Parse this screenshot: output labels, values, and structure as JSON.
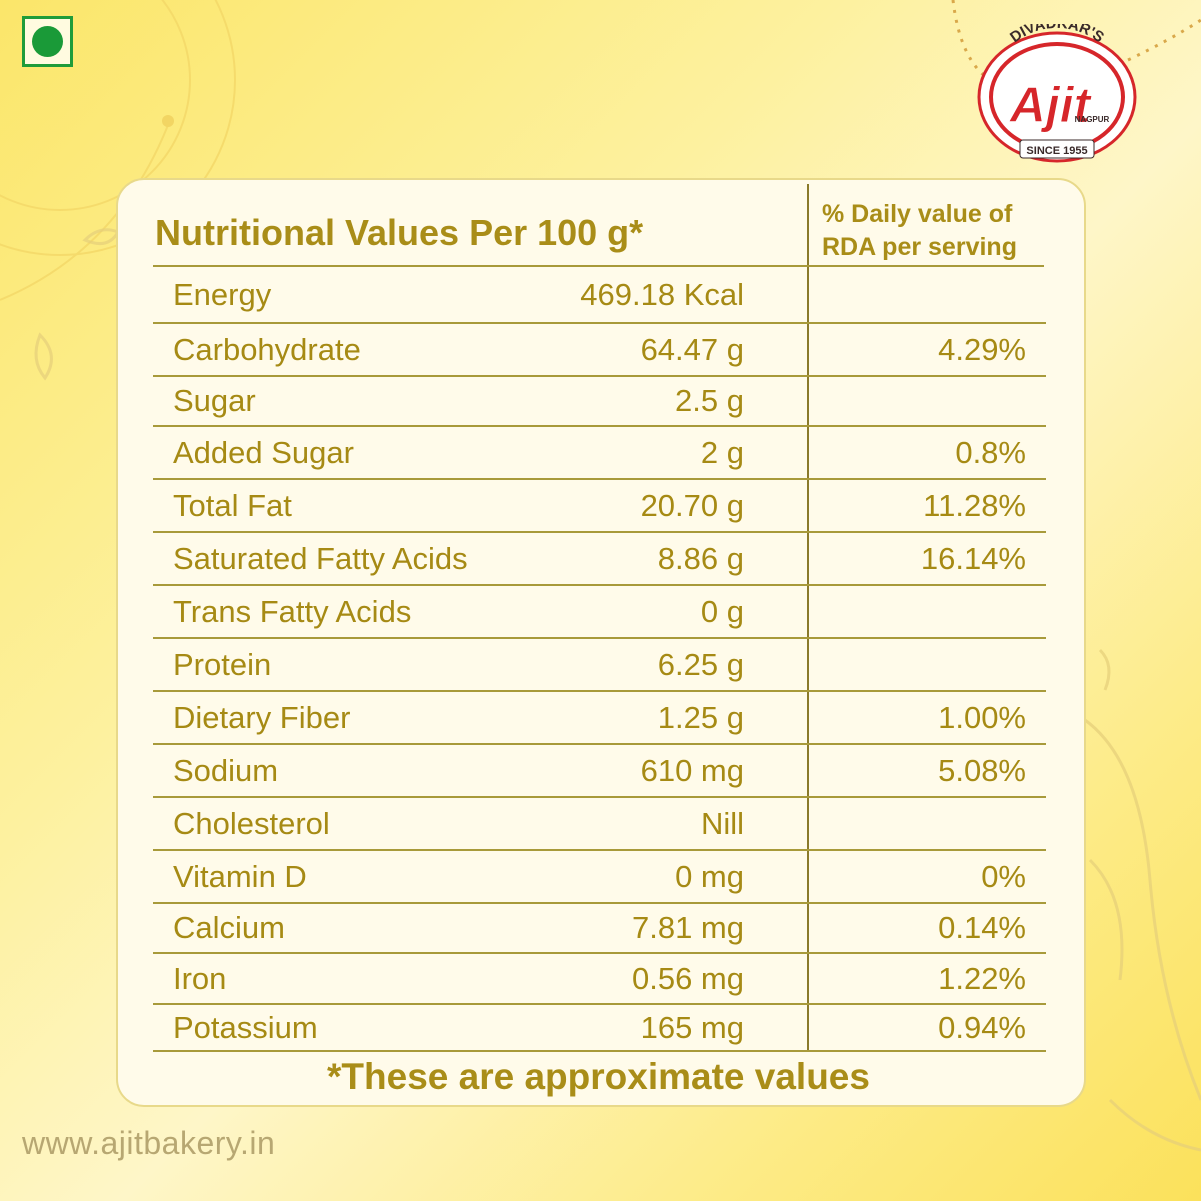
{
  "colors": {
    "gold_text": "#a98d18",
    "veg_green": "#1a9a38",
    "logo_red": "#d6262a",
    "background": "#fdf19f"
  },
  "veg_mark": {
    "icon": "veg-symbol-icon"
  },
  "logo": {
    "top_text": "DIVADKAR'S",
    "brand": "Ajit",
    "city": "NAGPUR",
    "since": "SINCE 1955"
  },
  "table": {
    "heading": "Nutritional Values Per 100 g*",
    "rda_heading": "% Daily value of RDA per serving",
    "rows": [
      {
        "label": "Energy",
        "value": "469.18 Kcal",
        "rda": ""
      },
      {
        "label": "Carbohydrate",
        "value": "64.47 g",
        "rda": "4.29%"
      },
      {
        "label": "Sugar",
        "value": "2.5 g",
        "rda": ""
      },
      {
        "label": "Added Sugar",
        "value": "2 g",
        "rda": "0.8%"
      },
      {
        "label": "Total Fat",
        "value": "20.70 g",
        "rda": "11.28%"
      },
      {
        "label": "Saturated Fatty Acids",
        "value": "8.86 g",
        "rda": "16.14%"
      },
      {
        "label": "Trans Fatty Acids",
        "value": "0 g",
        "rda": ""
      },
      {
        "label": "Protein",
        "value": "6.25 g",
        "rda": ""
      },
      {
        "label": "Dietary Fiber",
        "value": "1.25 g",
        "rda": "1.00%"
      },
      {
        "label": "Sodium",
        "value": "610 mg",
        "rda": "5.08%"
      },
      {
        "label": "Cholesterol",
        "value": "Nill",
        "rda": ""
      },
      {
        "label": "Vitamin D",
        "value": "0 mg",
        "rda": "0%"
      },
      {
        "label": "Calcium",
        "value": "7.81 mg",
        "rda": "0.14%"
      },
      {
        "label": "Iron",
        "value": "0.56 mg",
        "rda": "1.22%"
      },
      {
        "label": "Potassium",
        "value": "165 mg",
        "rda": "0.94%"
      }
    ],
    "footnote": "*These are approximate values"
  },
  "website": "www.ajitbakery.in"
}
